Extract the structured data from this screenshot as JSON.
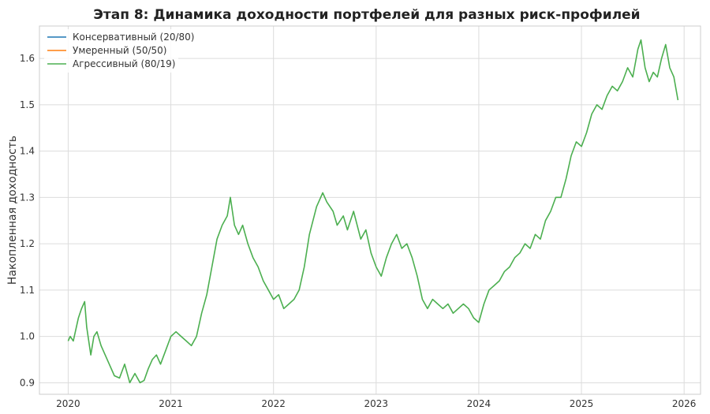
{
  "chart_data": {
    "type": "line",
    "title": "Этап 8: Динамика доходности портфелей для разных риск-профилей",
    "xlabel": "",
    "ylabel": "Накопленная доходность",
    "xlim": [
      2019.72,
      2026.16
    ],
    "ylim": [
      0.875,
      1.67
    ],
    "x_ticks": [
      2020,
      2021,
      2022,
      2023,
      2024,
      2025,
      2026
    ],
    "y_ticks": [
      0.9,
      1.0,
      1.1,
      1.2,
      1.3,
      1.4,
      1.5,
      1.6
    ],
    "grid": true,
    "legend_position": "top-left",
    "series": [
      {
        "name": "Консервативный (20/80)",
        "color": "#1f77b4",
        "x": [],
        "y": []
      },
      {
        "name": "Умеренный (50/50)",
        "color": "#ff7f0e",
        "x": [],
        "y": []
      },
      {
        "name": "Агрессивный (80/19)",
        "color": "#4caf50",
        "x": [
          2020.0,
          2020.02,
          2020.05,
          2020.08,
          2020.1,
          2020.13,
          2020.16,
          2020.18,
          2020.22,
          2020.25,
          2020.28,
          2020.32,
          2020.36,
          2020.4,
          2020.45,
          2020.5,
          2020.55,
          2020.6,
          2020.65,
          2020.7,
          2020.74,
          2020.78,
          2020.82,
          2020.86,
          2020.9,
          2020.95,
          2021.0,
          2021.05,
          2021.1,
          2021.15,
          2021.2,
          2021.25,
          2021.3,
          2021.35,
          2021.4,
          2021.45,
          2021.5,
          2021.55,
          2021.58,
          2021.62,
          2021.66,
          2021.7,
          2021.75,
          2021.8,
          2021.85,
          2021.9,
          2021.95,
          2022.0,
          2022.05,
          2022.1,
          2022.15,
          2022.2,
          2022.25,
          2022.3,
          2022.35,
          2022.42,
          2022.48,
          2022.52,
          2022.58,
          2022.62,
          2022.68,
          2022.72,
          2022.78,
          2022.85,
          2022.9,
          2022.95,
          2023.0,
          2023.05,
          2023.1,
          2023.15,
          2023.2,
          2023.25,
          2023.3,
          2023.35,
          2023.4,
          2023.45,
          2023.5,
          2023.55,
          2023.6,
          2023.65,
          2023.7,
          2023.75,
          2023.8,
          2023.85,
          2023.9,
          2023.95,
          2024.0,
          2024.05,
          2024.1,
          2024.15,
          2024.2,
          2024.25,
          2024.3,
          2024.35,
          2024.4,
          2024.45,
          2024.5,
          2024.55,
          2024.6,
          2024.65,
          2024.7,
          2024.75,
          2024.8,
          2024.85,
          2024.9,
          2024.95,
          2025.0,
          2025.05,
          2025.1,
          2025.15,
          2025.2,
          2025.25,
          2025.3,
          2025.35,
          2025.4,
          2025.45,
          2025.5,
          2025.55,
          2025.58,
          2025.62,
          2025.66,
          2025.7,
          2025.74,
          2025.78,
          2025.82,
          2025.86,
          2025.9,
          2025.94
        ],
        "y": [
          0.99,
          1.0,
          0.99,
          1.02,
          1.04,
          1.06,
          1.075,
          1.02,
          0.96,
          1.0,
          1.01,
          0.98,
          0.96,
          0.94,
          0.915,
          0.91,
          0.94,
          0.9,
          0.92,
          0.9,
          0.905,
          0.93,
          0.95,
          0.96,
          0.94,
          0.97,
          1.0,
          1.01,
          1.0,
          0.99,
          0.98,
          1.0,
          1.05,
          1.09,
          1.15,
          1.21,
          1.24,
          1.26,
          1.3,
          1.24,
          1.22,
          1.24,
          1.2,
          1.17,
          1.15,
          1.12,
          1.1,
          1.08,
          1.09,
          1.06,
          1.07,
          1.08,
          1.1,
          1.15,
          1.22,
          1.28,
          1.31,
          1.29,
          1.27,
          1.24,
          1.26,
          1.23,
          1.27,
          1.21,
          1.23,
          1.18,
          1.15,
          1.13,
          1.17,
          1.2,
          1.22,
          1.19,
          1.2,
          1.17,
          1.13,
          1.08,
          1.06,
          1.08,
          1.07,
          1.06,
          1.07,
          1.05,
          1.06,
          1.07,
          1.06,
          1.04,
          1.03,
          1.07,
          1.1,
          1.11,
          1.12,
          1.14,
          1.15,
          1.17,
          1.18,
          1.2,
          1.19,
          1.22,
          1.21,
          1.25,
          1.27,
          1.3,
          1.3,
          1.34,
          1.39,
          1.42,
          1.41,
          1.44,
          1.48,
          1.5,
          1.49,
          1.52,
          1.54,
          1.53,
          1.55,
          1.58,
          1.56,
          1.62,
          1.64,
          1.58,
          1.55,
          1.57,
          1.56,
          1.6,
          1.63,
          1.58,
          1.56,
          1.51
        ]
      }
    ]
  }
}
